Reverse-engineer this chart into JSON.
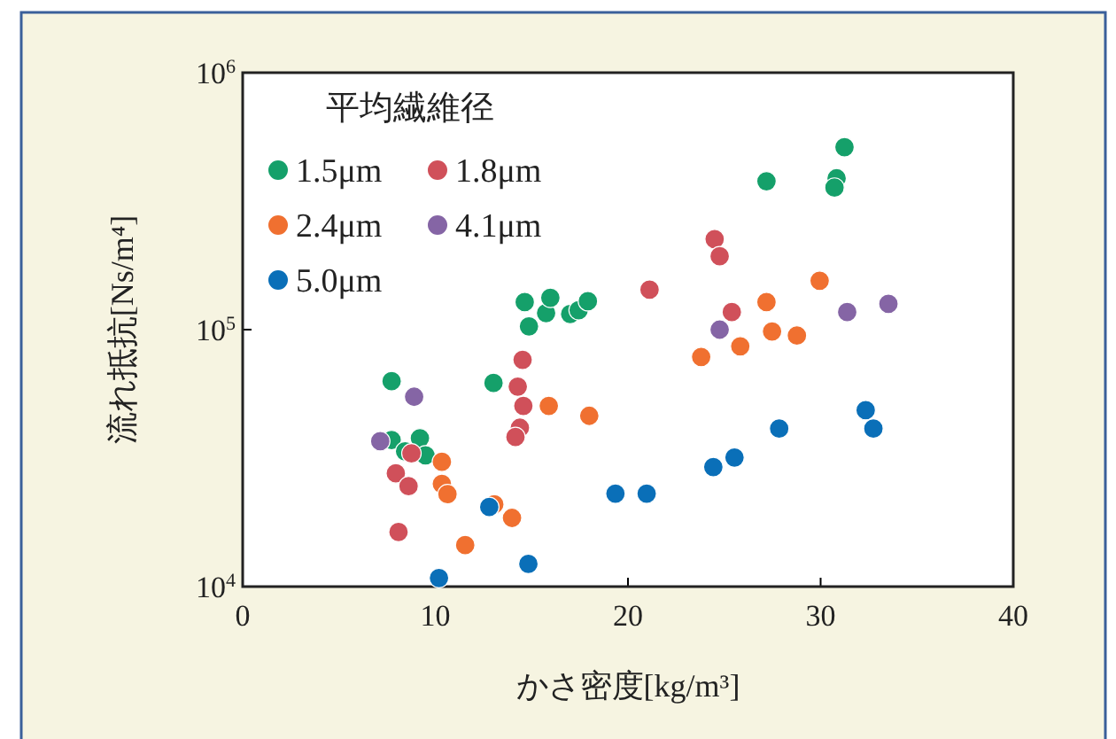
{
  "chart_data": {
    "type": "scatter",
    "xlabel": "かさ密度[kg/m³]",
    "ylabel": "流れ抵抗[Ns/m⁴]",
    "legend_title": "平均繊維径",
    "log": "y",
    "xlim": [
      0,
      40
    ],
    "xticks": [
      0,
      10,
      20,
      30,
      40
    ],
    "ylim": [
      10000,
      1000000
    ],
    "yticks": [
      {
        "value": 10000,
        "label": "10$^{4}$"
      },
      {
        "value": 100000,
        "label": "10$^{5}$"
      },
      {
        "value": 1000000,
        "label": "10$^{6}$"
      }
    ],
    "grid": false,
    "legend": "top left",
    "marker": "circle",
    "series": [
      {
        "name": "1.5μm",
        "color": "#15a06a",
        "x": [
          7.73,
          7.73,
          9.2,
          8.43,
          9.49,
          13.02,
          14.64,
          14.86,
          15.75,
          15.97,
          17.0,
          17.44,
          17.92,
          27.19,
          30.83,
          30.72,
          31.24
        ],
        "values": [
          63000,
          37200,
          37800,
          33600,
          32400,
          62000,
          128000,
          103000,
          116000,
          133000,
          115000,
          119000,
          129000,
          378000,
          388000,
          357000,
          513000
        ]
      },
      {
        "name": "1.8μm",
        "color": "#d0505a",
        "x": [
          8.76,
          7.95,
          8.61,
          8.09,
          14.53,
          14.28,
          14.57,
          14.39,
          14.16,
          21.12,
          24.5,
          24.76,
          25.39
        ],
        "values": [
          33000,
          27600,
          24600,
          16300,
          76300,
          60000,
          50500,
          41500,
          38200,
          143000,
          225000,
          193000,
          117000
        ]
      },
      {
        "name": "2.4μm",
        "color": "#f07030",
        "x": [
          10.34,
          10.34,
          10.63,
          13.06,
          13.98,
          11.55,
          15.89,
          17.99,
          23.8,
          25.83,
          27.19,
          27.48,
          28.77,
          29.95
        ],
        "values": [
          30600,
          25100,
          22900,
          20900,
          18500,
          14500,
          50500,
          46200,
          78300,
          86100,
          128000,
          98400,
          94800,
          155000
        ]
      },
      {
        "name": "4.1μm",
        "color": "#8565a5",
        "x": [
          7.14,
          8.9,
          24.76,
          31.38,
          33.52
        ],
        "values": [
          36800,
          54800,
          100000,
          117000,
          126000
        ]
      },
      {
        "name": "5.0μm",
        "color": "#0a6fb8",
        "x": [
          10.19,
          12.8,
          14.83,
          19.35,
          20.97,
          24.43,
          25.53,
          27.85,
          32.34,
          32.74
        ],
        "values": [
          10800,
          20400,
          12250,
          23000,
          23000,
          29200,
          31800,
          41200,
          48600,
          41200
        ]
      }
    ]
  }
}
